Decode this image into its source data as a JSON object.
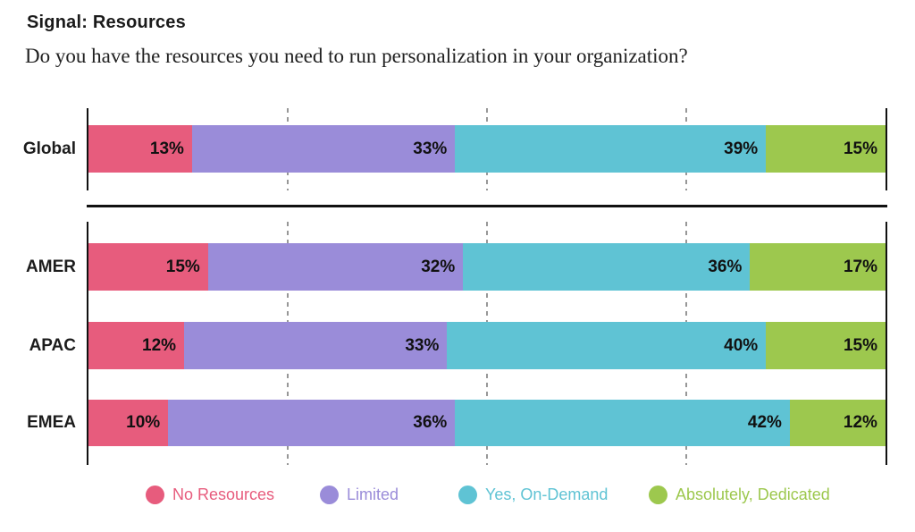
{
  "header": {
    "title": "Signal: Resources",
    "subtitle": "Do you have the resources you need to run personalization in your organization?"
  },
  "chart_data": {
    "type": "bar",
    "stacked": true,
    "orientation": "horizontal",
    "unit": "percent",
    "xlim": [
      0,
      100
    ],
    "gridlines_percent": [
      25,
      50,
      75
    ],
    "grid": "dashed-vertical",
    "value_label_format": "{v}%",
    "legend_position": "bottom",
    "categories": [
      "Global",
      "AMER",
      "APAC",
      "EMEA"
    ],
    "series": [
      {
        "name": "No Resources",
        "color": "#E75C7D",
        "values": [
          13,
          15,
          12,
          10
        ]
      },
      {
        "name": "Limited",
        "color": "#9A8CD9",
        "values": [
          33,
          32,
          33,
          36
        ]
      },
      {
        "name": "Yes, On-Demand",
        "color": "#5FC3D4",
        "values": [
          39,
          36,
          40,
          42
        ]
      },
      {
        "name": "Absolutely, Dedicated",
        "color": "#9DC84E",
        "values": [
          15,
          17,
          15,
          12
        ]
      }
    ]
  },
  "colors": {
    "axis": "#111111",
    "gridline": "#979797",
    "value_label": "#111111"
  }
}
